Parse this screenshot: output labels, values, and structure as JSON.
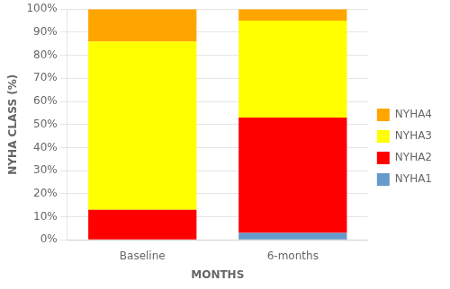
{
  "chart_data": {
    "type": "bar",
    "stacked": true,
    "categories": [
      "Baseline",
      "6-months"
    ],
    "series": [
      {
        "name": "NYHA1",
        "color": "#6699CC",
        "values": [
          0,
          3
        ]
      },
      {
        "name": "NYHA2",
        "color": "#FF0000",
        "values": [
          13,
          50
        ]
      },
      {
        "name": "NYHA3",
        "color": "#FFFF00",
        "values": [
          73,
          42
        ]
      },
      {
        "name": "NYHA4",
        "color": "#FFA500",
        "values": [
          14,
          5
        ]
      }
    ],
    "xlabel": "MONTHS",
    "ylabel": "NYHA CLASS (%)",
    "ylim": [
      0,
      100
    ],
    "yticks": [
      {
        "value": 0,
        "label": "0%"
      },
      {
        "value": 10,
        "label": "10%"
      },
      {
        "value": 20,
        "label": "20%"
      },
      {
        "value": 30,
        "label": "30%"
      },
      {
        "value": 40,
        "label": "40%"
      },
      {
        "value": 50,
        "label": "50%"
      },
      {
        "value": 60,
        "label": "60%"
      },
      {
        "value": 70,
        "label": "70%"
      },
      {
        "value": 80,
        "label": "80%"
      },
      {
        "value": 90,
        "label": "90%"
      },
      {
        "value": 100,
        "label": "100%"
      }
    ],
    "grid": true,
    "legend": "right"
  }
}
